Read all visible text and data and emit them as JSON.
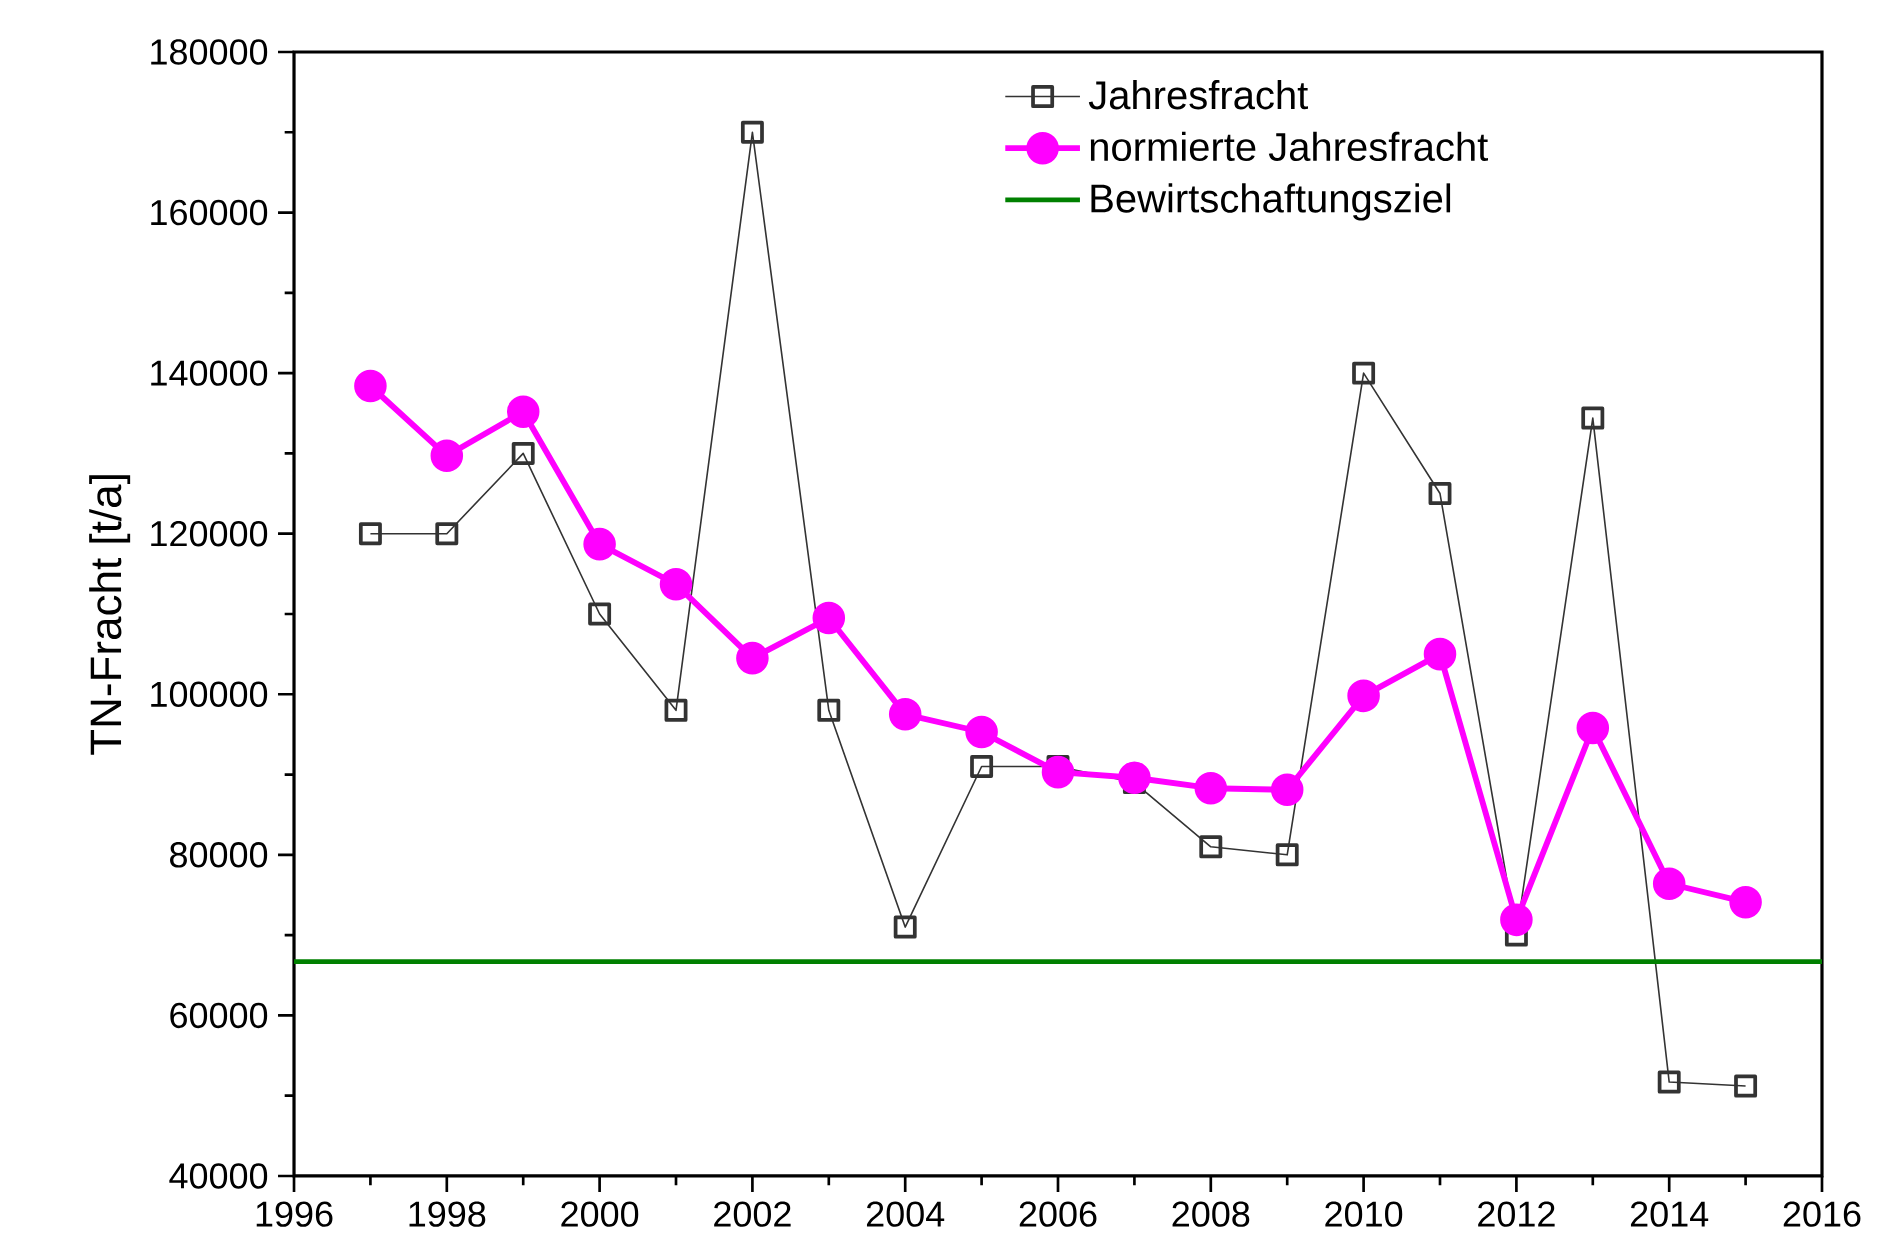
{
  "chart_data": {
    "type": "line",
    "ylabel": "TN-Fracht [t/a]",
    "x": [
      1997,
      1998,
      1999,
      2000,
      2001,
      2002,
      2003,
      2004,
      2005,
      2006,
      2007,
      2008,
      2009,
      2010,
      2011,
      2012,
      2013,
      2014,
      2015
    ],
    "series": [
      {
        "name": "Jahresfracht",
        "color": "#333333",
        "marker": "square",
        "values": [
          120000,
          120000,
          130000,
          110000,
          98000,
          170000,
          98000,
          71000,
          91000,
          91000,
          89000,
          81000,
          80000,
          140000,
          125000,
          70000,
          134400,
          51700,
          51200
        ]
      },
      {
        "name": "normierte Jahresfracht",
        "color": "#ff00ff",
        "marker": "circle",
        "values": [
          138400,
          129700,
          135200,
          118700,
          113700,
          104500,
          109500,
          97500,
          95300,
          90300,
          89600,
          88300,
          88100,
          99800,
          105000,
          71900,
          95800,
          76400,
          74100
        ]
      },
      {
        "name": "Bewirtschaftungsziel",
        "color": "#008000",
        "marker": "none",
        "x": [
          1996,
          2016
        ],
        "values": [
          66700,
          66700
        ]
      }
    ],
    "xlim": [
      1996,
      2016
    ],
    "xticks": [
      1996,
      1998,
      2000,
      2002,
      2004,
      2006,
      2008,
      2010,
      2012,
      2014,
      2016
    ],
    "ylim": [
      40000,
      180000
    ],
    "yticks": [
      40000,
      60000,
      80000,
      100000,
      120000,
      140000,
      160000,
      180000
    ],
    "grid": false,
    "legend": "top right",
    "line_style": "solid"
  }
}
